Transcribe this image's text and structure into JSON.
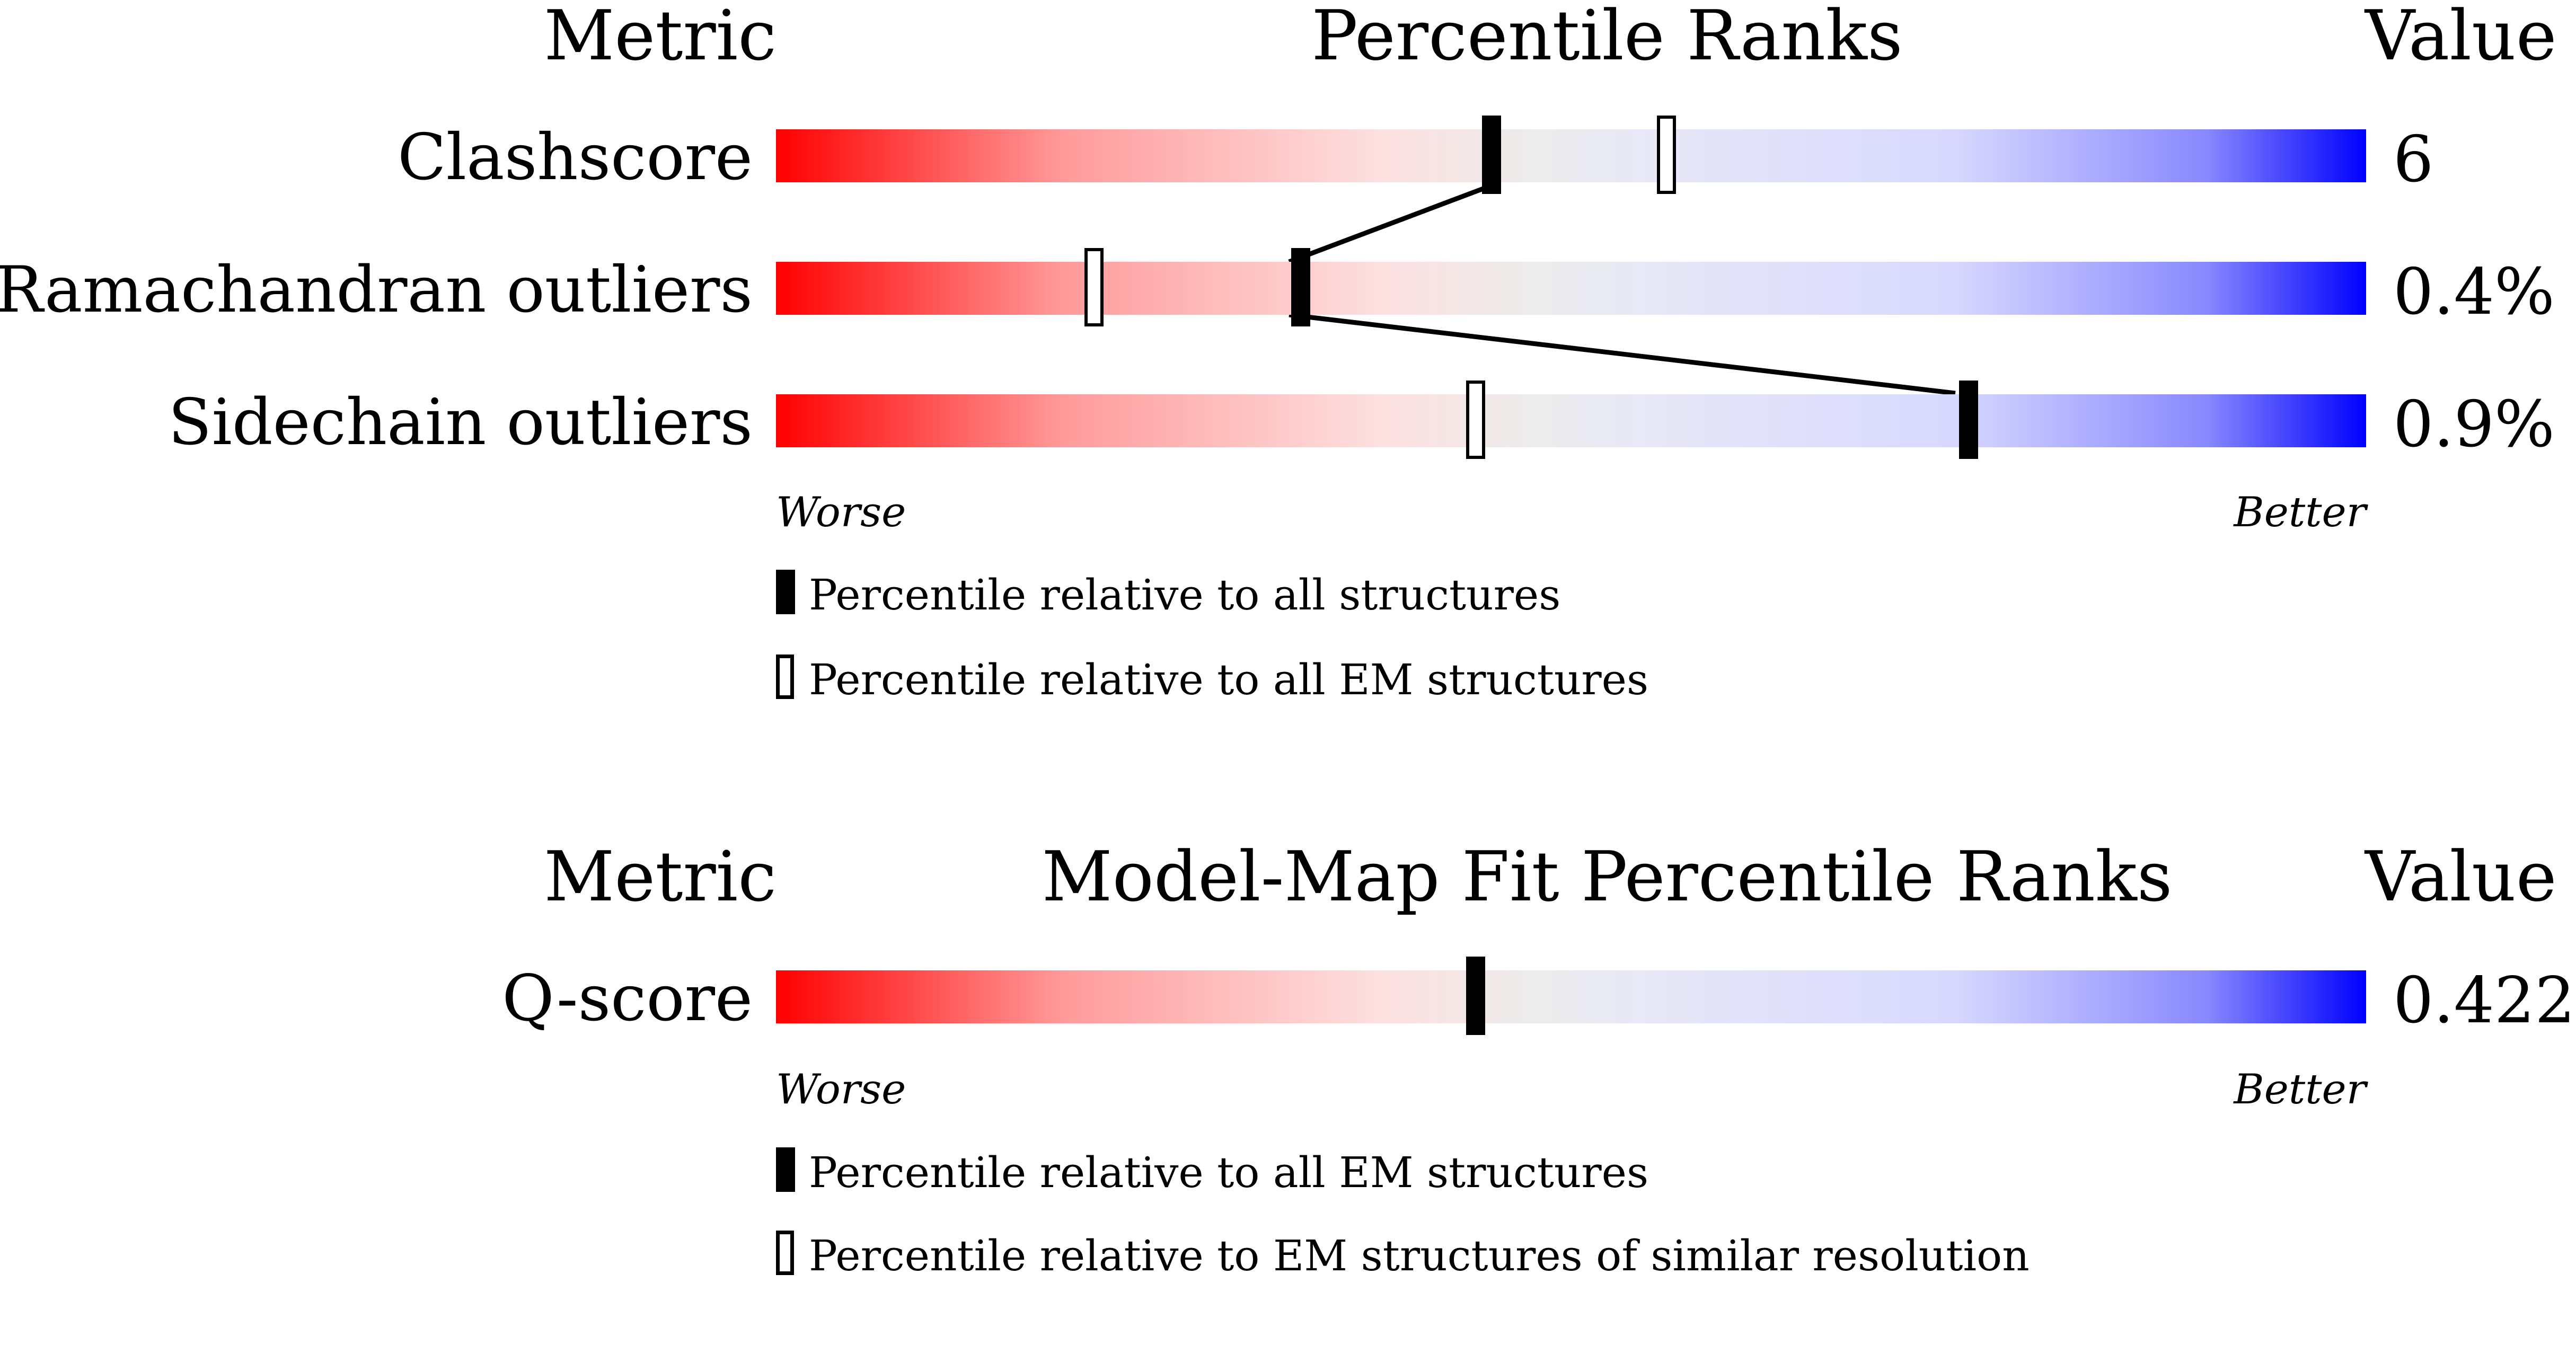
{
  "chart_data": [
    {
      "type": "percentile-rank bars",
      "headers": {
        "metric": "Metric",
        "title": "Percentile Ranks",
        "value": "Value"
      },
      "rows": [
        {
          "metric": "Clashscore",
          "value": "6",
          "percentile_all": 45,
          "percentile_em": 56
        },
        {
          "metric": "Ramachandran outliers",
          "value": "0.4%",
          "percentile_all": 33,
          "percentile_em": 20
        },
        {
          "metric": "Sidechain outliers",
          "value": "0.9%",
          "percentile_all": 75,
          "percentile_em": 44
        }
      ],
      "scale": {
        "worse": "Worse",
        "better": "Better",
        "range": [
          0,
          100
        ],
        "gradient_colors": [
          "#ff0000",
          "#ececec",
          "#0000ff"
        ]
      },
      "legend": [
        {
          "marker": "filled",
          "label": "Percentile relative to all structures"
        },
        {
          "marker": "hollow",
          "label": "Percentile relative to all EM structures"
        }
      ]
    },
    {
      "type": "percentile-rank bars",
      "headers": {
        "metric": "Metric",
        "title": "Model-Map Fit Percentile Ranks",
        "value": "Value"
      },
      "rows": [
        {
          "metric": "Q-score",
          "value": "0.422",
          "percentile_all": 44
        }
      ],
      "scale": {
        "worse": "Worse",
        "better": "Better",
        "range": [
          0,
          100
        ],
        "gradient_colors": [
          "#ff0000",
          "#ececec",
          "#0000ff"
        ]
      },
      "legend": [
        {
          "marker": "filled",
          "label": "Percentile relative to all EM structures"
        },
        {
          "marker": "hollow",
          "label": "Percentile relative to EM structures of similar resolution"
        }
      ]
    }
  ]
}
